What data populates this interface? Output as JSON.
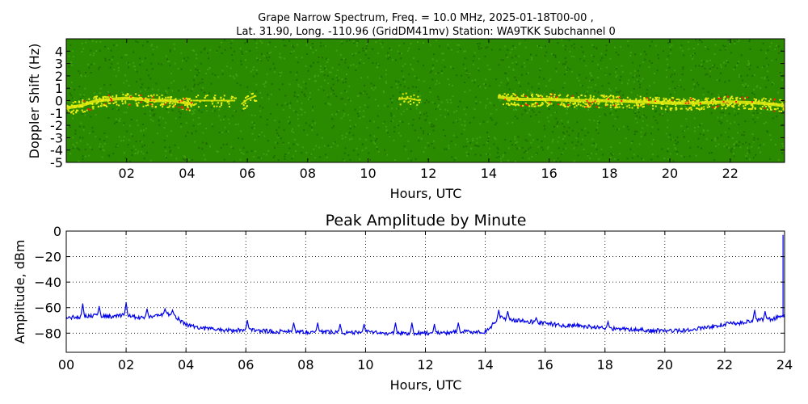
{
  "chart_data": [
    {
      "type": "heatmap",
      "title_line1": "Grape Narrow Spectrum, Freq. = 10.0 MHz, 2025-01-18T00-00 ,",
      "title_line2": "Lat.  31.90, Long. -110.96 (GridDM41mv) Station: WA9TKK Subchannel 0",
      "xlabel": "Hours, UTC",
      "ylabel": "Doppler Shift (Hz)",
      "xlim": [
        0,
        23.8
      ],
      "ylim": [
        -5,
        5
      ],
      "xticks": [
        "02",
        "04",
        "06",
        "08",
        "10",
        "12",
        "14",
        "16",
        "18",
        "20",
        "22"
      ],
      "xtick_values": [
        2,
        4,
        6,
        8,
        10,
        12,
        14,
        16,
        18,
        20,
        22
      ],
      "yticks": [
        "4",
        "3",
        "2",
        "1",
        "0",
        "-1",
        "-2",
        "-3",
        "-4",
        "-5"
      ],
      "ytick_values": [
        4,
        3,
        2,
        1,
        0,
        -1,
        -2,
        -3,
        -4,
        -5
      ],
      "colors": {
        "background": "#2a8a00",
        "noise": "#3fa010",
        "signal": "#e8ee10",
        "peak": "#ff2000"
      },
      "traces": [
        {
          "start": 0.0,
          "end": 4.2,
          "doppler": [
            [
              0.0,
              -0.6
            ],
            [
              0.5,
              -0.4
            ],
            [
              1.0,
              0.0
            ],
            [
              1.5,
              0.1
            ],
            [
              2.0,
              0.2
            ],
            [
              2.5,
              0.1
            ],
            [
              3.0,
              0.0
            ],
            [
              3.5,
              0.0
            ],
            [
              4.0,
              -0.2
            ],
            [
              4.2,
              -0.3
            ]
          ],
          "intensity": 1.0
        },
        {
          "start": 4.2,
          "end": 5.6,
          "doppler": [
            [
              4.2,
              0.0
            ],
            [
              5.6,
              0.0
            ]
          ],
          "intensity": 0.5
        },
        {
          "start": 5.8,
          "end": 6.3,
          "doppler": [
            [
              5.8,
              -0.3
            ],
            [
              6.0,
              0.1
            ],
            [
              6.3,
              0.4
            ]
          ],
          "intensity": 0.6
        },
        {
          "start": 11.0,
          "end": 11.7,
          "doppler": [
            [
              11.0,
              0.1
            ],
            [
              11.3,
              0.2
            ],
            [
              11.7,
              0.0
            ]
          ],
          "intensity": 0.5
        },
        {
          "start": 14.3,
          "end": 23.8,
          "doppler": [
            [
              14.3,
              0.3
            ],
            [
              14.6,
              0.2
            ],
            [
              15.0,
              0.1
            ],
            [
              16.0,
              0.1
            ],
            [
              17.0,
              0.0
            ],
            [
              18.0,
              0.0
            ],
            [
              19.0,
              -0.1
            ],
            [
              20.0,
              -0.2
            ],
            [
              21.0,
              -0.2
            ],
            [
              22.0,
              -0.1
            ],
            [
              23.0,
              -0.2
            ],
            [
              23.8,
              -0.4
            ]
          ],
          "intensity": 1.0
        }
      ]
    },
    {
      "type": "line",
      "title": "Peak Amplitude by Minute",
      "xlabel": "Hours, UTC",
      "ylabel": "Amplitude, dBm",
      "xlim": [
        0,
        24
      ],
      "ylim": [
        -95,
        0
      ],
      "xticks": [
        "00",
        "02",
        "04",
        "06",
        "08",
        "10",
        "12",
        "14",
        "16",
        "18",
        "20",
        "22",
        "24"
      ],
      "xtick_values": [
        0,
        2,
        4,
        6,
        8,
        10,
        12,
        14,
        16,
        18,
        20,
        22,
        24
      ],
      "yticks": [
        "0",
        "−20",
        "−40",
        "−60",
        "−80"
      ],
      "ytick_values": [
        0,
        -20,
        -40,
        -60,
        -80
      ],
      "grid": true,
      "line_color": "#0000ee",
      "series": [
        {
          "x": [
            0.0,
            0.5,
            1.0,
            1.5,
            2.0,
            2.5,
            3.0,
            3.5,
            4.0,
            4.5,
            5.0,
            5.5,
            6.0,
            6.5,
            7.0,
            7.5,
            8.0,
            8.5,
            9.0,
            9.5,
            10.0,
            10.5,
            11.0,
            11.5,
            12.0,
            12.5,
            13.0,
            13.5,
            14.0,
            14.5,
            15.0,
            15.5,
            16.0,
            16.5,
            17.0,
            17.5,
            18.0,
            18.5,
            19.0,
            19.5,
            20.0,
            20.5,
            21.0,
            21.5,
            22.0,
            22.5,
            23.0,
            23.5,
            24.0
          ],
          "values": [
            -68,
            -67,
            -66,
            -67,
            -66,
            -68,
            -66,
            -65,
            -73,
            -76,
            -77,
            -78,
            -77,
            -78,
            -79,
            -78,
            -79,
            -79,
            -79,
            -80,
            -79,
            -80,
            -80,
            -80,
            -80,
            -80,
            -79,
            -79,
            -79,
            -68,
            -70,
            -71,
            -72,
            -74,
            -74,
            -75,
            -76,
            -77,
            -77,
            -78,
            -78,
            -78,
            -77,
            -75,
            -73,
            -72,
            -70,
            -69,
            -67
          ]
        }
      ],
      "spikes": [
        {
          "x": 0.55,
          "value": -57
        },
        {
          "x": 1.1,
          "value": -59
        },
        {
          "x": 2.0,
          "value": -56
        },
        {
          "x": 2.7,
          "value": -61
        },
        {
          "x": 3.3,
          "value": -61
        },
        {
          "x": 3.55,
          "value": -62
        },
        {
          "x": 6.05,
          "value": -70
        },
        {
          "x": 7.6,
          "value": -72
        },
        {
          "x": 8.4,
          "value": -72
        },
        {
          "x": 9.15,
          "value": -73
        },
        {
          "x": 9.95,
          "value": -73
        },
        {
          "x": 11.0,
          "value": -72
        },
        {
          "x": 11.55,
          "value": -72
        },
        {
          "x": 12.3,
          "value": -73
        },
        {
          "x": 13.1,
          "value": -72
        },
        {
          "x": 14.45,
          "value": -62
        },
        {
          "x": 14.75,
          "value": -63
        },
        {
          "x": 15.7,
          "value": -68
        },
        {
          "x": 18.1,
          "value": -71
        },
        {
          "x": 23.0,
          "value": -62
        },
        {
          "x": 23.35,
          "value": -63
        }
      ],
      "end_spike": {
        "x": 23.95,
        "value": -3
      }
    }
  ]
}
